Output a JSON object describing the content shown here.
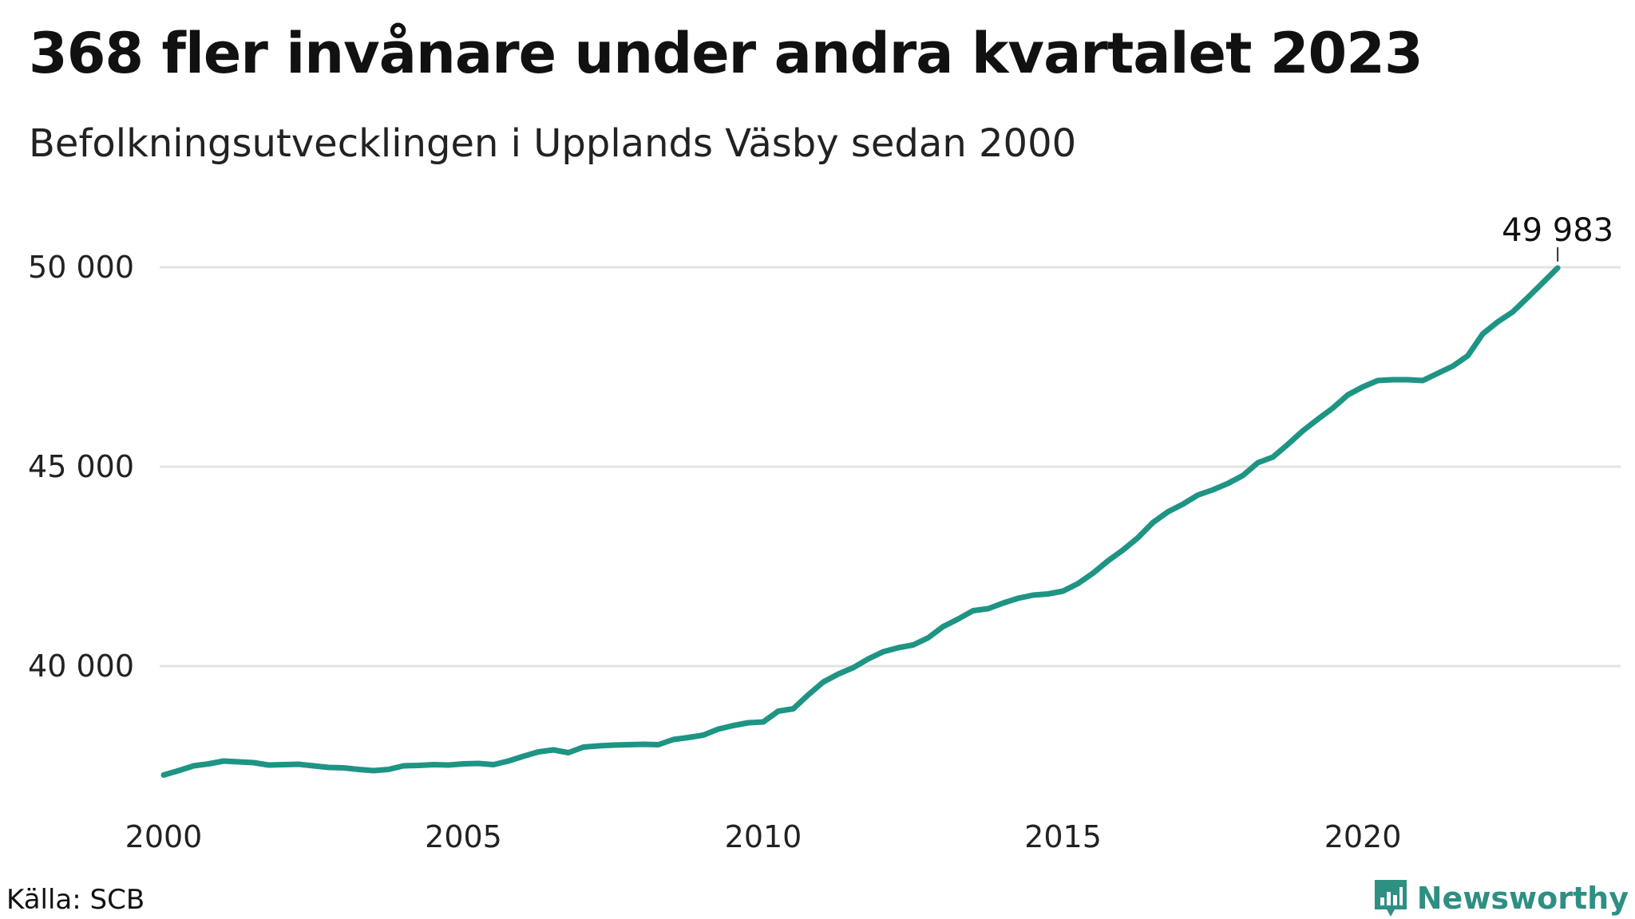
{
  "title": "368 fler invånare under andra kvartalet 2023",
  "subtitle": "Befolkningsutvecklingen i Upplands Väsby sedan 2000",
  "source": "Källa: SCB",
  "brand": {
    "name": "Newsworthy",
    "icon": "newsworthy-logo-icon",
    "color": "#2e8f83"
  },
  "chart_data": {
    "type": "line",
    "title": "368 fler invånare under andra kvartalet 2023",
    "subtitle": "Befolkningsutvecklingen i Upplands Väsby sedan 2000",
    "xlabel": "",
    "ylabel": "",
    "xlim": [
      2000.0,
      2024.3
    ],
    "ylim": [
      37000,
      50800
    ],
    "x_ticks": [
      2000,
      2005,
      2010,
      2015,
      2020
    ],
    "x_tick_labels": [
      "2000",
      "2005",
      "2010",
      "2015",
      "2020"
    ],
    "y_ticks": [
      40000,
      45000,
      50000
    ],
    "y_tick_labels": [
      "40 000",
      "45 000",
      "50 000"
    ],
    "grid": true,
    "line_color": "#1e9484",
    "grid_color": "#e3e3e3",
    "end_label": "49 983",
    "series": [
      {
        "x": [
          2000.0,
          2000.25,
          2000.5,
          2000.75,
          2001.0,
          2001.25,
          2001.5,
          2001.75,
          2002.0,
          2002.25,
          2002.5,
          2002.75,
          2003.0,
          2003.25,
          2003.5,
          2003.75,
          2004.0,
          2004.25,
          2004.5,
          2004.75,
          2005.0,
          2005.25,
          2005.5,
          2005.75,
          2006.0,
          2006.25,
          2006.5,
          2006.75,
          2007.0,
          2007.25,
          2007.5,
          2007.75,
          2008.0,
          2008.25,
          2008.5,
          2008.75,
          2009.0,
          2009.25,
          2009.5,
          2009.75,
          2010.0,
          2010.25,
          2010.5,
          2010.75,
          2011.0,
          2011.25,
          2011.5,
          2011.75,
          2012.0,
          2012.25,
          2012.5,
          2012.75,
          2013.0,
          2013.25,
          2013.5,
          2013.75,
          2014.0,
          2014.25,
          2014.5,
          2014.75,
          2015.0,
          2015.25,
          2015.5,
          2015.75,
          2016.0,
          2016.25,
          2016.5,
          2016.75,
          2017.0,
          2017.25,
          2017.5,
          2017.75,
          2018.0,
          2018.25,
          2018.5,
          2018.75,
          2019.0,
          2019.25,
          2019.5,
          2019.75,
          2020.0,
          2020.25,
          2020.5,
          2020.75,
          2021.0,
          2021.25,
          2021.5,
          2021.75,
          2022.0,
          2022.25,
          2022.5,
          2022.75,
          2023.0,
          2023.25
        ],
        "y": [
          37270,
          37380,
          37500,
          37550,
          37620,
          37600,
          37580,
          37520,
          37530,
          37540,
          37500,
          37460,
          37450,
          37410,
          37380,
          37410,
          37500,
          37510,
          37530,
          37520,
          37550,
          37560,
          37530,
          37620,
          37740,
          37850,
          37900,
          37830,
          37970,
          38000,
          38020,
          38030,
          38040,
          38030,
          38160,
          38210,
          38270,
          38420,
          38510,
          38580,
          38600,
          38870,
          38930,
          39280,
          39600,
          39800,
          39960,
          40180,
          40360,
          40460,
          40530,
          40710,
          40990,
          41180,
          41390,
          41440,
          41580,
          41700,
          41780,
          41810,
          41880,
          42070,
          42330,
          42640,
          42910,
          43220,
          43600,
          43870,
          44060,
          44290,
          44420,
          44580,
          44780,
          45100,
          45240,
          45560,
          45900,
          46190,
          46470,
          46800,
          47000,
          47160,
          47180,
          47180,
          47160,
          47340,
          47520,
          47780,
          48330,
          48630,
          48880,
          49240,
          49610,
          49983
        ]
      }
    ]
  }
}
